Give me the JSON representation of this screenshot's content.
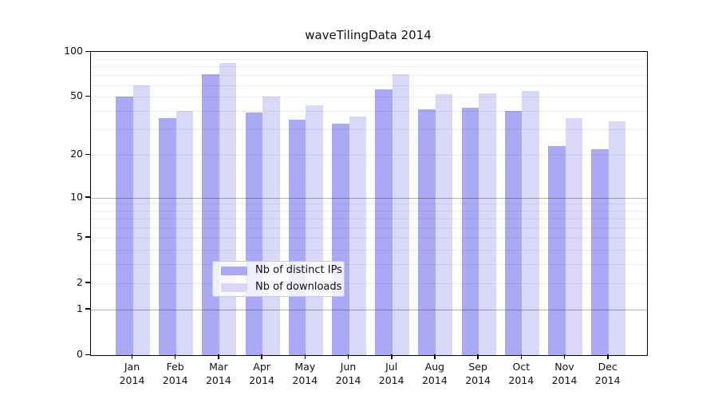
{
  "title": "waveTilingData 2014",
  "chart_data": {
    "type": "bar",
    "title": "waveTilingData 2014",
    "categories": [
      "Jan",
      "Feb",
      "Mar",
      "Apr",
      "May",
      "Jun",
      "Jul",
      "Aug",
      "Sep",
      "Oct",
      "Nov",
      "Dec"
    ],
    "category_year": "2014",
    "series": [
      {
        "name": "Nb of distinct IPs",
        "color": "#a9a9f5",
        "values": [
          50,
          36,
          71,
          39,
          35,
          33,
          56,
          41,
          42,
          40,
          23,
          22
        ]
      },
      {
        "name": "Nb of downloads",
        "color": "#d9d9f7",
        "values": [
          60,
          40,
          84,
          50,
          44,
          37,
          71,
          52,
          53,
          55,
          36,
          34
        ]
      }
    ],
    "y_axis": {
      "scale": "log1p",
      "ylim": [
        0,
        100
      ],
      "ticks": [
        0,
        1,
        2,
        5,
        10,
        20,
        50,
        100
      ],
      "tick_labels": [
        "0",
        "1",
        "2",
        "5",
        "10",
        "20",
        "50",
        "100"
      ],
      "major_gridlines": [
        1,
        10
      ],
      "minor_gridlines": [
        2,
        3,
        4,
        5,
        6,
        7,
        8,
        9,
        20,
        30,
        40,
        50,
        60,
        70,
        80,
        90
      ]
    },
    "legend": {
      "position": "bottom-center"
    },
    "grid": true
  },
  "colors": {
    "background": "#ffffff",
    "axis": "#000000",
    "text": "#111111",
    "grid_major": "rgba(0,0,0,0.30)",
    "grid_minor": "rgba(0,0,0,0.07)",
    "legend_border": "#cccccc",
    "legend_background": "rgba(255,255,255,0.8)"
  }
}
